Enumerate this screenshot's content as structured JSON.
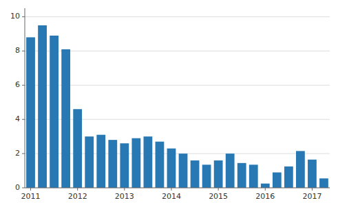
{
  "chart_data": {
    "type": "bar",
    "categories": [
      "2011",
      null,
      null,
      null,
      "2012",
      null,
      null,
      null,
      "2013",
      null,
      null,
      null,
      "2014",
      null,
      null,
      null,
      "2015",
      null,
      null,
      null,
      "2016",
      null,
      null,
      null,
      "2017",
      null
    ],
    "values": [
      8.8,
      9.5,
      8.9,
      8.1,
      4.6,
      3.0,
      3.1,
      2.8,
      2.6,
      2.9,
      3.0,
      2.7,
      2.3,
      2.0,
      1.6,
      1.35,
      1.6,
      2.0,
      1.45,
      1.35,
      0.25,
      0.9,
      1.25,
      2.15,
      1.65,
      0.55
    ],
    "color": "#2878b4",
    "ylim": [
      0,
      10.5
    ],
    "yticks": [
      0,
      2,
      4,
      6,
      8,
      10
    ],
    "grid": true
  }
}
